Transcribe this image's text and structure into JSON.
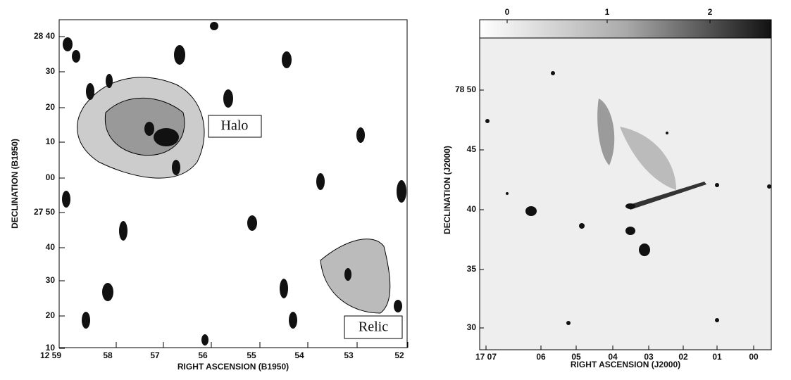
{
  "left_panel": {
    "x_label": "RIGHT ASCENSION (B1950)",
    "y_label": "DECLINATION (B1950)",
    "x_ticks": [
      "12 59",
      "58",
      "57",
      "56",
      "55",
      "54",
      "53",
      "52"
    ],
    "y_ticks": [
      "28 40",
      "30",
      "20",
      "10",
      "00",
      "27 50",
      "40",
      "30",
      "20",
      "10"
    ],
    "annotations": [
      "Halo",
      "Relic"
    ]
  },
  "right_panel": {
    "x_label": "RIGHT ASCENSION (J2000)",
    "y_label": "DECLINATION (J2000)",
    "x_ticks": [
      "17 07",
      "06",
      "05",
      "04",
      "03",
      "02",
      "01",
      "00"
    ],
    "y_ticks": [
      "78 50",
      "45",
      "40",
      "35",
      "30"
    ],
    "colorbar_ticks": [
      "0",
      "1",
      "2"
    ]
  }
}
